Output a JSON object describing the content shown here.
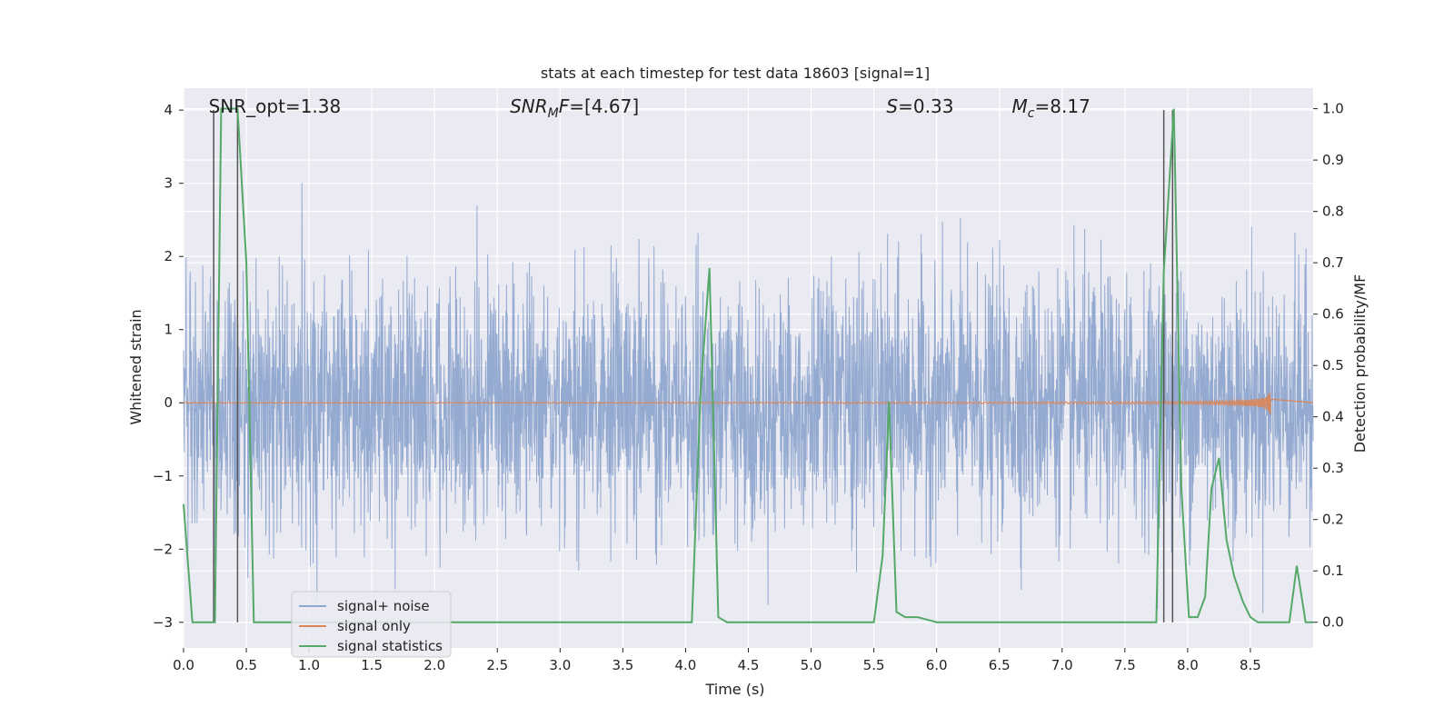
{
  "chart_data": {
    "type": "line",
    "title": "stats at each timestep for test data 18603 [signal=1]",
    "xlabel": "Time (s)",
    "ylabel": "Whitened strain",
    "ylabel_right": "Detection probability/MF",
    "xlim": [
      0,
      9
    ],
    "ylim": [
      -3.35,
      4.3
    ],
    "ylim_right": [
      -0.05,
      1.04
    ],
    "xticks": [
      0.0,
      0.5,
      1.0,
      1.5,
      2.0,
      2.5,
      3.0,
      3.5,
      4.0,
      4.5,
      5.0,
      5.5,
      6.0,
      6.5,
      7.0,
      7.5,
      8.0,
      8.5
    ],
    "xtick_labels": [
      "0.0",
      "0.5",
      "1.0",
      "1.5",
      "2.0",
      "2.5",
      "3.0",
      "3.5",
      "4.0",
      "4.5",
      "5.0",
      "5.5",
      "6.0",
      "6.5",
      "7.0",
      "7.5",
      "8.0",
      "8.5"
    ],
    "yticks": [
      -3,
      -2,
      -1,
      0,
      1,
      2,
      3,
      4
    ],
    "ytick_labels": [
      "−3",
      "−2",
      "−1",
      "0",
      "1",
      "2",
      "3",
      "4"
    ],
    "yticks_right": [
      0.0,
      0.1,
      0.2,
      0.3,
      0.4,
      0.5,
      0.6,
      0.7,
      0.8,
      0.9,
      1.0
    ],
    "ytick_labels_right": [
      "0.0",
      "0.1",
      "0.2",
      "0.3",
      "0.4",
      "0.5",
      "0.6",
      "0.7",
      "0.8",
      "0.9",
      "1.0"
    ],
    "grid": true,
    "legend_position": "lower-left",
    "annotations": [
      {
        "x": 0.2,
        "text_plain": "SNR_opt=1.38"
      },
      {
        "x": 2.6,
        "text_html": "<tspan font-style='italic'>SNR</tspan><tspan font-style='italic' font-size='14' dy='5'>M</tspan><tspan font-style='italic' dy='-5'>F</tspan>=[4.67]"
      },
      {
        "x": 5.6,
        "text_html": "<tspan font-style='italic'>S</tspan>=0.33"
      },
      {
        "x": 6.6,
        "text_html": "<tspan font-style='italic'>M</tspan><tspan font-style='italic' font-size='14' dy='5'>c</tspan><tspan dy='-5'>=8.17</tspan>"
      }
    ],
    "vlines": [
      0.24,
      0.43,
      7.81,
      7.88
    ],
    "vline_range": [
      -3.0,
      4.0
    ],
    "series": [
      {
        "name": "signal+ noise",
        "axis": "left",
        "color": "#8fa6cf",
        "kind": "noise",
        "approx_range": [
          -3.0,
          4.0
        ]
      },
      {
        "name": "signal only",
        "axis": "left",
        "color": "#dd8452",
        "kind": "chirp",
        "chirp_end": 8.68,
        "chirp_peak_amplitude": 0.17
      },
      {
        "name": "signal statistics",
        "axis": "right",
        "color": "#55a868",
        "x": [
          0.0,
          0.07,
          0.14,
          0.21,
          0.25,
          0.3,
          0.35,
          0.43,
          0.5,
          0.56,
          0.63,
          0.7,
          1.0,
          2.0,
          3.0,
          3.5,
          3.9,
          4.05,
          4.12,
          4.19,
          4.26,
          4.33,
          4.5,
          5.0,
          5.3,
          5.5,
          5.57,
          5.62,
          5.68,
          5.75,
          5.85,
          6.0,
          6.5,
          7.0,
          7.5,
          7.75,
          7.81,
          7.89,
          7.95,
          8.01,
          8.08,
          8.14,
          8.19,
          8.25,
          8.31,
          8.37,
          8.44,
          8.5,
          8.56,
          8.62,
          8.68,
          8.75,
          8.81,
          8.87,
          8.94,
          9.0
        ],
        "values": [
          0.23,
          0.0,
          0.0,
          0.0,
          0.0,
          1.0,
          1.0,
          1.0,
          0.7,
          0.0,
          0.0,
          0.0,
          0.0,
          0.0,
          0.0,
          0.0,
          0.0,
          0.0,
          0.45,
          0.69,
          0.01,
          0.0,
          0.0,
          0.0,
          0.0,
          0.0,
          0.13,
          0.43,
          0.02,
          0.01,
          0.01,
          0.0,
          0.0,
          0.0,
          0.0,
          0.0,
          0.68,
          1.0,
          0.26,
          0.01,
          0.01,
          0.05,
          0.26,
          0.32,
          0.16,
          0.09,
          0.04,
          0.01,
          0.0,
          0.0,
          0.0,
          0.0,
          0.0,
          0.11,
          0.0,
          0.0
        ]
      }
    ]
  },
  "legend": {
    "items": [
      {
        "label": "signal+ noise",
        "color": "#8fa6cf"
      },
      {
        "label": "signal only",
        "color": "#dd8452"
      },
      {
        "label": "signal statistics",
        "color": "#55a868"
      }
    ]
  },
  "colors": {
    "plot_bg": "#eaeaf2",
    "grid": "#ffffff",
    "vline": "#555555"
  }
}
